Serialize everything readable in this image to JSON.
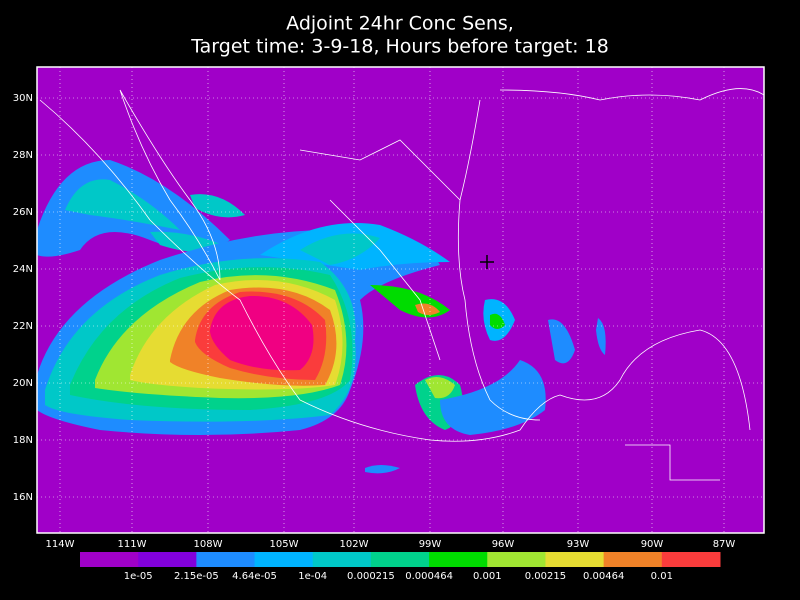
{
  "title": [
    "Adjoint 24hr Conc Sens,",
    "Target time: 3-9-18, Hours before target: 18"
  ],
  "lat_labels": [
    "30N",
    "28N",
    "26N",
    "24N",
    "22N",
    "20N",
    "18N",
    "16N"
  ],
  "lon_labels": [
    "114W",
    "111W",
    "108W",
    "105W",
    "102W",
    "99W",
    "96W",
    "93W",
    "90W",
    "87W"
  ],
  "colorbar": {
    "labels": [
      "1e-05",
      "2.15e-05",
      "4.64e-05",
      "1e-04",
      "0.000215",
      "0.000464",
      "0.001",
      "0.00215",
      "0.00464",
      "0.01"
    ],
    "colors": [
      "#a000c8",
      "#8200dc",
      "#1e8cff",
      "#00b4ff",
      "#00c8c8",
      "#00d28c",
      "#00dc00",
      "#a0e632",
      "#e6dc32",
      "#f08228",
      "#fa3c3c",
      "#f00082"
    ]
  }
}
